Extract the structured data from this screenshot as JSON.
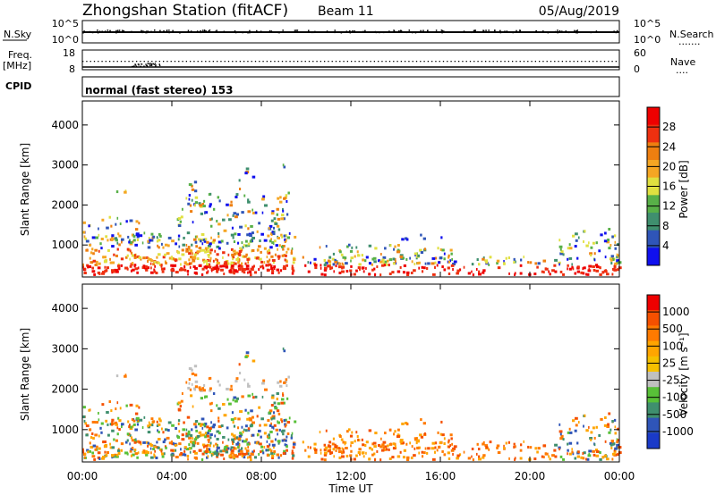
{
  "header": {
    "station": "Zhongshan Station (fitACF)",
    "beam": "Beam 11",
    "date": "05/Aug/2019"
  },
  "noise_panel": {
    "left_label": "N.Sky",
    "right_label": "N.Search",
    "right_legend": ".......",
    "left_ticks": [
      "10^5",
      "10^0"
    ],
    "right_ticks": [
      "10^5",
      "10^0"
    ]
  },
  "freq_panel": {
    "left_label_1": "Freq.",
    "left_label_2": "[MHz]",
    "right_label": "Nave",
    "right_legend": "....",
    "left_ticks": [
      "18",
      "8"
    ],
    "right_ticks": [
      "60",
      "0"
    ]
  },
  "cpid": {
    "label": "CPID",
    "text": "normal (fast stereo) 153"
  },
  "time_axis": {
    "ticks": [
      "00:00",
      "04:00",
      "08:00",
      "12:00",
      "16:00",
      "20:00",
      "00:00"
    ],
    "label": "Time UT"
  },
  "chart_data": [
    {
      "type": "heatmap",
      "name": "power-panel",
      "ylabel": "Slant Range [km]",
      "xlabel": "Time UT",
      "x_range_hours": [
        0,
        24
      ],
      "ylim": [
        200,
        4600
      ],
      "yticks": [
        "1000",
        "2000",
        "3000",
        "4000"
      ],
      "colorbar_label": "Power [dB]",
      "colorbar_ticks": [
        "4",
        "8",
        "12",
        "16",
        "20",
        "24",
        "28"
      ],
      "colorbar_colors": [
        "#1010ee",
        "#2f55b8",
        "#3f8f6e",
        "#58b048",
        "#e0e040",
        "#f5a623",
        "#ee7f10",
        "#ee3010",
        "#ee0000"
      ]
    },
    {
      "type": "heatmap",
      "name": "velocity-panel",
      "ylabel": "Slant Range [km]",
      "xlabel": "Time UT",
      "x_range_hours": [
        0,
        24
      ],
      "ylim": [
        200,
        4600
      ],
      "yticks": [
        "1000",
        "2000",
        "3000",
        "4000"
      ],
      "colorbar_label": "Velocity [m s⁻¹]",
      "colorbar_ticks": [
        "1000",
        "500",
        "100",
        "25",
        "-25",
        "-100",
        "-500",
        "-1000"
      ],
      "colorbar_colors": [
        "#1a3ac8",
        "#2f55b8",
        "#3f8f6e",
        "#58c038",
        "#c0c0c0",
        "#f5c000",
        "#ffa500",
        "#ff7a00",
        "#f55000",
        "#ee0000"
      ]
    }
  ]
}
